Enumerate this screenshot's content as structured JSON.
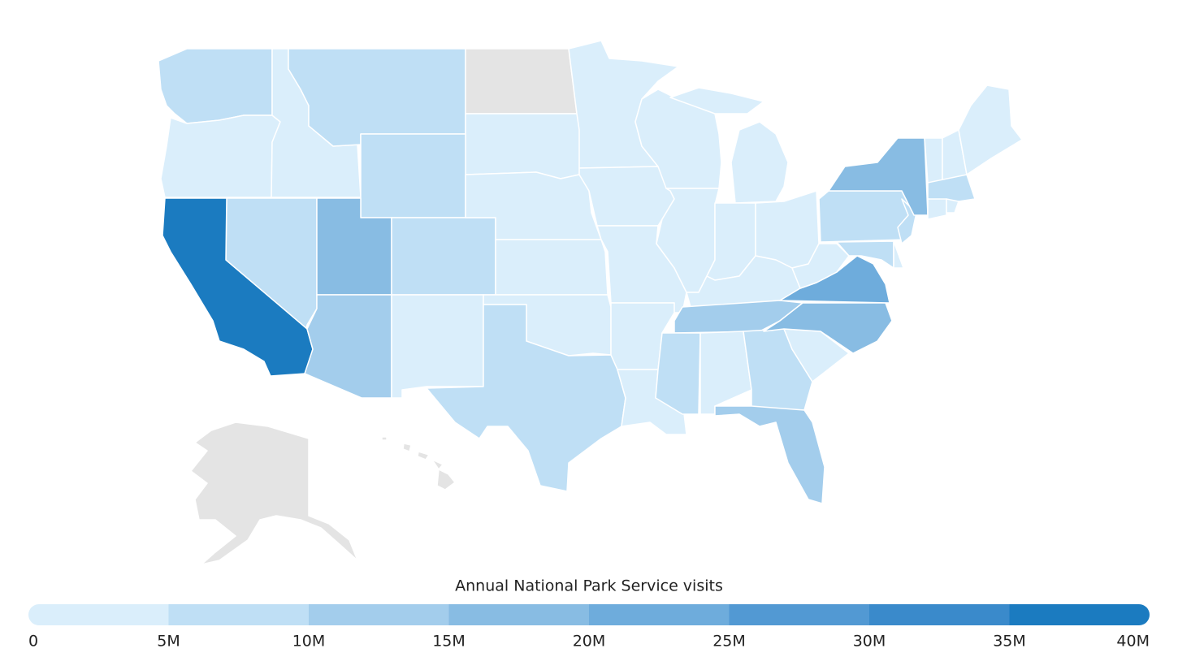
{
  "chart_data": {
    "type": "choropleth",
    "title": "Annual National Park Service visits",
    "values": [
      8000000,
      1500000,
      700000,
      5500000,
      null,
      4300000,
      7000000,
      6000000,
      39000000,
      17000000,
      7500000,
      11000000,
      1800000,
      300000,
      100000,
      800000,
      6000000,
      900000,
      200000,
      2000000,
      3000000,
      500000,
      1000000,
      300000,
      3000000,
      3000000,
      2600000,
      2000000,
      13000000,
      6000000,
      800000,
      7000000,
      11000000,
      1500000,
      17000000,
      23000000,
      1600000,
      9000000,
      7000000,
      100000,
      6000000,
      18000000,
      40000,
      30000,
      4000000,
      9000000,
      30000,
      50000,
      null,
      null
    ],
    "colors": [
      "#daeefb",
      "#bfdff5",
      "#a3cdec",
      "#88bce3",
      "#6eacdc",
      "#5299d3",
      "#3a8acb",
      "#1b7bc0"
    ],
    "missing_color": "#e4e4e4",
    "xlim": [
      0,
      40000000
    ],
    "xticks": [
      0,
      {
        "value": 5000000,
        "label": "5M"
      },
      {
        "value": 10000000,
        "label": "10M"
      },
      {
        "value": 15000000,
        "label": "15M"
      },
      {
        "value": 20000000,
        "label": "20M"
      },
      {
        "value": 25000000,
        "label": "25M"
      },
      {
        "value": 30000000,
        "label": "30M"
      },
      {
        "value": 35000000,
        "label": "35M"
      },
      {
        "value": 40000000,
        "label": "40M"
      }
    ]
  }
}
